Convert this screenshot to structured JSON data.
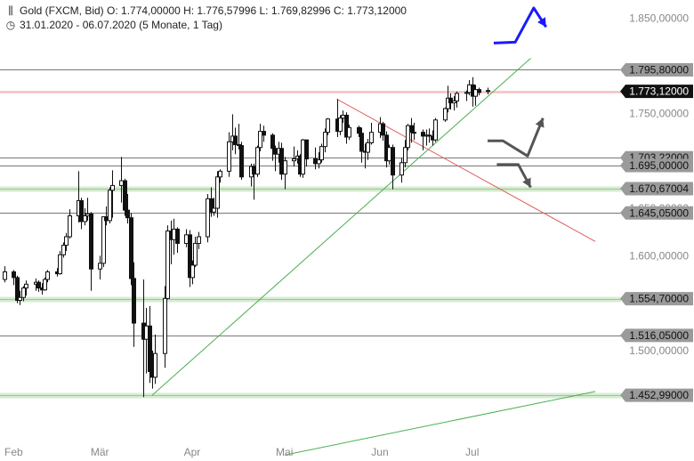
{
  "header": {
    "line1": "Gold (FXCM, Bid)  O: 1.774,00000  H: 1.776,57996  L: 1.769,82996  C: 1.773,12000",
    "line2": "31.01.2020 - 06.07.2020   (5 Monate, 1 Tag)",
    "icon1": "candlestick-icon",
    "icon2": "clock-icon"
  },
  "chart_data": {
    "type": "candlestick",
    "instrument": "Gold (FXCM, Bid)",
    "period": "31.01.2020 - 06.07.2020",
    "yrange": [
      1400,
      1860
    ],
    "y_ticks": [
      {
        "value": 1850,
        "label": "1.850,00000"
      },
      {
        "value": 1750,
        "label": "1.750,00000"
      },
      {
        "value": 1650,
        "label": "1.650,00000"
      },
      {
        "value": 1600,
        "label": "1.600,00000"
      },
      {
        "value": 1500,
        "label": "1.500,00000"
      }
    ],
    "x_labels": [
      {
        "date": "2020-02-03",
        "label": "Feb"
      },
      {
        "date": "2020-03-02",
        "label": "Mär"
      },
      {
        "date": "2020-04-01",
        "label": "Apr"
      },
      {
        "date": "2020-05-01",
        "label": "Mai"
      },
      {
        "date": "2020-06-01",
        "label": "Jun"
      },
      {
        "date": "2020-07-01",
        "label": "Jul"
      }
    ],
    "price_levels": [
      {
        "value": 1795.8,
        "label": "1.795,80000",
        "style": "gray"
      },
      {
        "value": 1773.12,
        "label": "1.773,12000",
        "style": "current"
      },
      {
        "value": 1703.22,
        "label": "1.703,22000",
        "style": "gray"
      },
      {
        "value": 1695.0,
        "label": "1.695,00000",
        "style": "gray"
      },
      {
        "value": 1670.67,
        "label": "1.670,67004",
        "style": "support"
      },
      {
        "value": 1645.05,
        "label": "1.645,05000",
        "style": "gray"
      },
      {
        "value": 1554.7,
        "label": "1.554,70000",
        "style": "support"
      },
      {
        "value": 1516.05,
        "label": "1.516,05000",
        "style": "gray"
      },
      {
        "value": 1452.99,
        "label": "1.452,99000",
        "style": "support"
      }
    ],
    "candles": [
      {
        "date": "2020-01-31",
        "o": 1575,
        "h": 1589,
        "l": 1572,
        "c": 1583
      },
      {
        "date": "2020-02-03",
        "o": 1583,
        "h": 1585,
        "l": 1569,
        "c": 1577
      },
      {
        "date": "2020-02-04",
        "o": 1577,
        "h": 1579,
        "l": 1550,
        "c": 1553
      },
      {
        "date": "2020-02-05",
        "o": 1553,
        "h": 1563,
        "l": 1548,
        "c": 1556
      },
      {
        "date": "2020-02-06",
        "o": 1556,
        "h": 1568,
        "l": 1552,
        "c": 1566
      },
      {
        "date": "2020-02-07",
        "o": 1566,
        "h": 1574,
        "l": 1558,
        "c": 1570
      },
      {
        "date": "2020-02-10",
        "o": 1570,
        "h": 1576,
        "l": 1563,
        "c": 1572
      },
      {
        "date": "2020-02-11",
        "o": 1572,
        "h": 1574,
        "l": 1562,
        "c": 1566
      },
      {
        "date": "2020-02-12",
        "o": 1566,
        "h": 1571,
        "l": 1559,
        "c": 1564
      },
      {
        "date": "2020-02-13",
        "o": 1564,
        "h": 1577,
        "l": 1563,
        "c": 1575
      },
      {
        "date": "2020-02-14",
        "o": 1575,
        "h": 1585,
        "l": 1572,
        "c": 1583
      },
      {
        "date": "2020-02-17",
        "o": 1583,
        "h": 1587,
        "l": 1578,
        "c": 1581
      },
      {
        "date": "2020-02-18",
        "o": 1581,
        "h": 1605,
        "l": 1580,
        "c": 1601
      },
      {
        "date": "2020-02-19",
        "o": 1601,
        "h": 1614,
        "l": 1598,
        "c": 1611
      },
      {
        "date": "2020-02-20",
        "o": 1611,
        "h": 1624,
        "l": 1605,
        "c": 1620
      },
      {
        "date": "2020-02-21",
        "o": 1620,
        "h": 1649,
        "l": 1618,
        "c": 1642
      },
      {
        "date": "2020-02-24",
        "o": 1642,
        "h": 1689,
        "l": 1635,
        "c": 1658
      },
      {
        "date": "2020-02-25",
        "o": 1658,
        "h": 1661,
        "l": 1628,
        "c": 1636
      },
      {
        "date": "2020-02-26",
        "o": 1636,
        "h": 1650,
        "l": 1632,
        "c": 1642
      },
      {
        "date": "2020-02-27",
        "o": 1642,
        "h": 1661,
        "l": 1637,
        "c": 1644
      },
      {
        "date": "2020-02-28",
        "o": 1644,
        "h": 1646,
        "l": 1563,
        "c": 1586
      },
      {
        "date": "2020-03-02",
        "o": 1586,
        "h": 1600,
        "l": 1575,
        "c": 1592
      },
      {
        "date": "2020-03-03",
        "o": 1592,
        "h": 1641,
        "l": 1588,
        "c": 1641
      },
      {
        "date": "2020-03-04",
        "o": 1641,
        "h": 1652,
        "l": 1632,
        "c": 1637
      },
      {
        "date": "2020-03-05",
        "o": 1637,
        "h": 1672,
        "l": 1634,
        "c": 1669
      },
      {
        "date": "2020-03-06",
        "o": 1669,
        "h": 1690,
        "l": 1640,
        "c": 1674
      },
      {
        "date": "2020-03-09",
        "o": 1674,
        "h": 1704,
        "l": 1656,
        "c": 1679
      },
      {
        "date": "2020-03-10",
        "o": 1679,
        "h": 1681,
        "l": 1642,
        "c": 1648
      },
      {
        "date": "2020-03-11",
        "o": 1648,
        "h": 1665,
        "l": 1634,
        "c": 1640
      },
      {
        "date": "2020-03-12",
        "o": 1640,
        "h": 1645,
        "l": 1569,
        "c": 1576
      },
      {
        "date": "2020-03-13",
        "o": 1576,
        "h": 1593,
        "l": 1504,
        "c": 1529
      },
      {
        "date": "2020-03-16",
        "o": 1529,
        "h": 1575,
        "l": 1451,
        "c": 1512
      },
      {
        "date": "2020-03-17",
        "o": 1512,
        "h": 1545,
        "l": 1476,
        "c": 1526
      },
      {
        "date": "2020-03-18",
        "o": 1526,
        "h": 1547,
        "l": 1466,
        "c": 1478
      },
      {
        "date": "2020-03-19",
        "o": 1478,
        "h": 1500,
        "l": 1460,
        "c": 1472
      },
      {
        "date": "2020-03-20",
        "o": 1472,
        "h": 1517,
        "l": 1465,
        "c": 1497
      },
      {
        "date": "2020-03-23",
        "o": 1497,
        "h": 1568,
        "l": 1482,
        "c": 1555
      },
      {
        "date": "2020-03-24",
        "o": 1555,
        "h": 1632,
        "l": 1554,
        "c": 1626
      },
      {
        "date": "2020-03-25",
        "o": 1626,
        "h": 1637,
        "l": 1591,
        "c": 1617
      },
      {
        "date": "2020-03-26",
        "o": 1617,
        "h": 1639,
        "l": 1601,
        "c": 1628
      },
      {
        "date": "2020-03-27",
        "o": 1628,
        "h": 1630,
        "l": 1603,
        "c": 1613
      },
      {
        "date": "2020-03-30",
        "o": 1613,
        "h": 1628,
        "l": 1609,
        "c": 1622
      },
      {
        "date": "2020-03-31",
        "o": 1622,
        "h": 1627,
        "l": 1567,
        "c": 1577
      },
      {
        "date": "2020-04-01",
        "o": 1577,
        "h": 1595,
        "l": 1570,
        "c": 1590
      },
      {
        "date": "2020-04-02",
        "o": 1590,
        "h": 1620,
        "l": 1588,
        "c": 1613
      },
      {
        "date": "2020-04-03",
        "o": 1613,
        "h": 1625,
        "l": 1607,
        "c": 1620
      },
      {
        "date": "2020-04-06",
        "o": 1620,
        "h": 1665,
        "l": 1614,
        "c": 1660
      },
      {
        "date": "2020-04-07",
        "o": 1660,
        "h": 1672,
        "l": 1641,
        "c": 1646
      },
      {
        "date": "2020-04-08",
        "o": 1646,
        "h": 1661,
        "l": 1642,
        "c": 1650
      },
      {
        "date": "2020-04-09",
        "o": 1650,
        "h": 1689,
        "l": 1640,
        "c": 1683
      },
      {
        "date": "2020-04-10",
        "o": 1683,
        "h": 1691,
        "l": 1677,
        "c": 1689
      },
      {
        "date": "2020-04-13",
        "o": 1689,
        "h": 1730,
        "l": 1683,
        "c": 1720
      },
      {
        "date": "2020-04-14",
        "o": 1720,
        "h": 1749,
        "l": 1711,
        "c": 1726
      },
      {
        "date": "2020-04-15",
        "o": 1726,
        "h": 1735,
        "l": 1707,
        "c": 1717
      },
      {
        "date": "2020-04-16",
        "o": 1717,
        "h": 1739,
        "l": 1712,
        "c": 1716
      },
      {
        "date": "2020-04-17",
        "o": 1716,
        "h": 1720,
        "l": 1680,
        "c": 1683
      },
      {
        "date": "2020-04-20",
        "o": 1683,
        "h": 1697,
        "l": 1673,
        "c": 1694
      },
      {
        "date": "2020-04-21",
        "o": 1694,
        "h": 1697,
        "l": 1659,
        "c": 1686
      },
      {
        "date": "2020-04-22",
        "o": 1686,
        "h": 1716,
        "l": 1683,
        "c": 1714
      },
      {
        "date": "2020-04-23",
        "o": 1714,
        "h": 1739,
        "l": 1710,
        "c": 1731
      },
      {
        "date": "2020-04-24",
        "o": 1731,
        "h": 1737,
        "l": 1720,
        "c": 1727
      },
      {
        "date": "2020-04-27",
        "o": 1727,
        "h": 1729,
        "l": 1700,
        "c": 1713
      },
      {
        "date": "2020-04-28",
        "o": 1713,
        "h": 1716,
        "l": 1689,
        "c": 1707
      },
      {
        "date": "2020-04-29",
        "o": 1707,
        "h": 1720,
        "l": 1698,
        "c": 1713
      },
      {
        "date": "2020-04-30",
        "o": 1713,
        "h": 1719,
        "l": 1680,
        "c": 1686
      },
      {
        "date": "2020-05-01",
        "o": 1686,
        "h": 1704,
        "l": 1670,
        "c": 1700
      },
      {
        "date": "2020-05-04",
        "o": 1700,
        "h": 1715,
        "l": 1694,
        "c": 1702
      },
      {
        "date": "2020-05-05",
        "o": 1702,
        "h": 1711,
        "l": 1697,
        "c": 1705
      },
      {
        "date": "2020-05-06",
        "o": 1705,
        "h": 1707,
        "l": 1683,
        "c": 1686
      },
      {
        "date": "2020-05-07",
        "o": 1686,
        "h": 1723,
        "l": 1682,
        "c": 1722
      },
      {
        "date": "2020-05-08",
        "o": 1722,
        "h": 1722,
        "l": 1694,
        "c": 1702
      },
      {
        "date": "2020-05-11",
        "o": 1702,
        "h": 1714,
        "l": 1691,
        "c": 1697
      },
      {
        "date": "2020-05-12",
        "o": 1697,
        "h": 1709,
        "l": 1692,
        "c": 1701
      },
      {
        "date": "2020-05-13",
        "o": 1701,
        "h": 1718,
        "l": 1698,
        "c": 1715
      },
      {
        "date": "2020-05-14",
        "o": 1715,
        "h": 1734,
        "l": 1709,
        "c": 1730
      },
      {
        "date": "2020-05-15",
        "o": 1730,
        "h": 1745,
        "l": 1727,
        "c": 1744
      },
      {
        "date": "2020-05-18",
        "o": 1744,
        "h": 1765,
        "l": 1725,
        "c": 1731
      },
      {
        "date": "2020-05-19",
        "o": 1731,
        "h": 1748,
        "l": 1727,
        "c": 1745
      },
      {
        "date": "2020-05-20",
        "o": 1745,
        "h": 1753,
        "l": 1740,
        "c": 1748
      },
      {
        "date": "2020-05-21",
        "o": 1748,
        "h": 1751,
        "l": 1718,
        "c": 1725
      },
      {
        "date": "2020-05-22",
        "o": 1725,
        "h": 1738,
        "l": 1722,
        "c": 1735
      },
      {
        "date": "2020-05-25",
        "o": 1735,
        "h": 1737,
        "l": 1725,
        "c": 1729
      },
      {
        "date": "2020-05-26",
        "o": 1729,
        "h": 1735,
        "l": 1698,
        "c": 1710
      },
      {
        "date": "2020-05-27",
        "o": 1710,
        "h": 1718,
        "l": 1692,
        "c": 1709
      },
      {
        "date": "2020-05-28",
        "o": 1709,
        "h": 1723,
        "l": 1701,
        "c": 1719
      },
      {
        "date": "2020-05-29",
        "o": 1719,
        "h": 1740,
        "l": 1717,
        "c": 1730
      },
      {
        "date": "2020-06-01",
        "o": 1730,
        "h": 1746,
        "l": 1724,
        "c": 1739
      },
      {
        "date": "2020-06-02",
        "o": 1739,
        "h": 1741,
        "l": 1721,
        "c": 1727
      },
      {
        "date": "2020-06-03",
        "o": 1727,
        "h": 1731,
        "l": 1693,
        "c": 1700
      },
      {
        "date": "2020-06-04",
        "o": 1700,
        "h": 1717,
        "l": 1696,
        "c": 1714
      },
      {
        "date": "2020-06-05",
        "o": 1714,
        "h": 1717,
        "l": 1670,
        "c": 1685
      },
      {
        "date": "2020-06-08",
        "o": 1685,
        "h": 1703,
        "l": 1677,
        "c": 1698
      },
      {
        "date": "2020-06-09",
        "o": 1698,
        "h": 1722,
        "l": 1693,
        "c": 1714
      },
      {
        "date": "2020-06-10",
        "o": 1714,
        "h": 1739,
        "l": 1711,
        "c": 1737
      },
      {
        "date": "2020-06-11",
        "o": 1737,
        "h": 1745,
        "l": 1719,
        "c": 1730
      },
      {
        "date": "2020-06-12",
        "o": 1730,
        "h": 1740,
        "l": 1722,
        "c": 1730
      },
      {
        "date": "2020-06-15",
        "o": 1730,
        "h": 1733,
        "l": 1711,
        "c": 1726
      },
      {
        "date": "2020-06-16",
        "o": 1726,
        "h": 1733,
        "l": 1716,
        "c": 1727
      },
      {
        "date": "2020-06-17",
        "o": 1727,
        "h": 1734,
        "l": 1719,
        "c": 1726
      },
      {
        "date": "2020-06-18",
        "o": 1726,
        "h": 1732,
        "l": 1716,
        "c": 1722
      },
      {
        "date": "2020-06-19",
        "o": 1722,
        "h": 1745,
        "l": 1720,
        "c": 1743
      },
      {
        "date": "2020-06-22",
        "o": 1743,
        "h": 1756,
        "l": 1741,
        "c": 1755
      },
      {
        "date": "2020-06-23",
        "o": 1755,
        "h": 1779,
        "l": 1751,
        "c": 1766
      },
      {
        "date": "2020-06-24",
        "o": 1766,
        "h": 1771,
        "l": 1754,
        "c": 1761
      },
      {
        "date": "2020-06-25",
        "o": 1761,
        "h": 1768,
        "l": 1753,
        "c": 1763
      },
      {
        "date": "2020-06-26",
        "o": 1763,
        "h": 1773,
        "l": 1756,
        "c": 1771
      },
      {
        "date": "2020-06-29",
        "o": 1771,
        "h": 1774,
        "l": 1763,
        "c": 1772
      },
      {
        "date": "2020-06-30",
        "o": 1772,
        "h": 1785,
        "l": 1769,
        "c": 1780
      },
      {
        "date": "2020-07-01",
        "o": 1780,
        "h": 1788,
        "l": 1757,
        "c": 1768
      },
      {
        "date": "2020-07-02",
        "o": 1768,
        "h": 1780,
        "l": 1758,
        "c": 1775
      },
      {
        "date": "2020-07-03",
        "o": 1775,
        "h": 1777,
        "l": 1769,
        "c": 1772
      },
      {
        "date": "2020-07-06",
        "o": 1774,
        "h": 1777,
        "l": 1770,
        "c": 1773
      }
    ],
    "trendlines": [
      {
        "name": "uptrend",
        "color": "#4caf50",
        "from": {
          "date": "2020-03-19",
          "value": 1452.99
        },
        "to": {
          "date": "2020-07-20",
          "value": 1808
        }
      },
      {
        "name": "downtrend",
        "color": "#e06060",
        "from": {
          "date": "2020-05-18",
          "value": 1765
        },
        "to": {
          "date": "2020-08-10",
          "value": 1615
        }
      },
      {
        "name": "lower-trend",
        "color": "#4caf50",
        "from": {
          "date": "2020-05-01",
          "value": 1390
        },
        "to": {
          "date": "2020-08-10",
          "value": 1457
        }
      }
    ],
    "scenario_arrows": [
      {
        "color": "#1a1aff",
        "points": [
          {
            "date": "2020-07-08",
            "value": 1824
          },
          {
            "date": "2020-07-15",
            "value": 1825
          },
          {
            "date": "2020-07-21",
            "value": 1861
          },
          {
            "date": "2020-07-25",
            "value": 1841
          }
        ]
      },
      {
        "color": "#555555",
        "points": [
          {
            "date": "2020-07-06",
            "value": 1721
          },
          {
            "date": "2020-07-11",
            "value": 1721
          },
          {
            "date": "2020-07-19",
            "value": 1705
          },
          {
            "date": "2020-07-24",
            "value": 1745
          }
        ]
      },
      {
        "color": "#555555",
        "points": [
          {
            "date": "2020-07-09",
            "value": 1696
          },
          {
            "date": "2020-07-16",
            "value": 1696
          },
          {
            "date": "2020-07-20",
            "value": 1672
          }
        ]
      }
    ]
  }
}
